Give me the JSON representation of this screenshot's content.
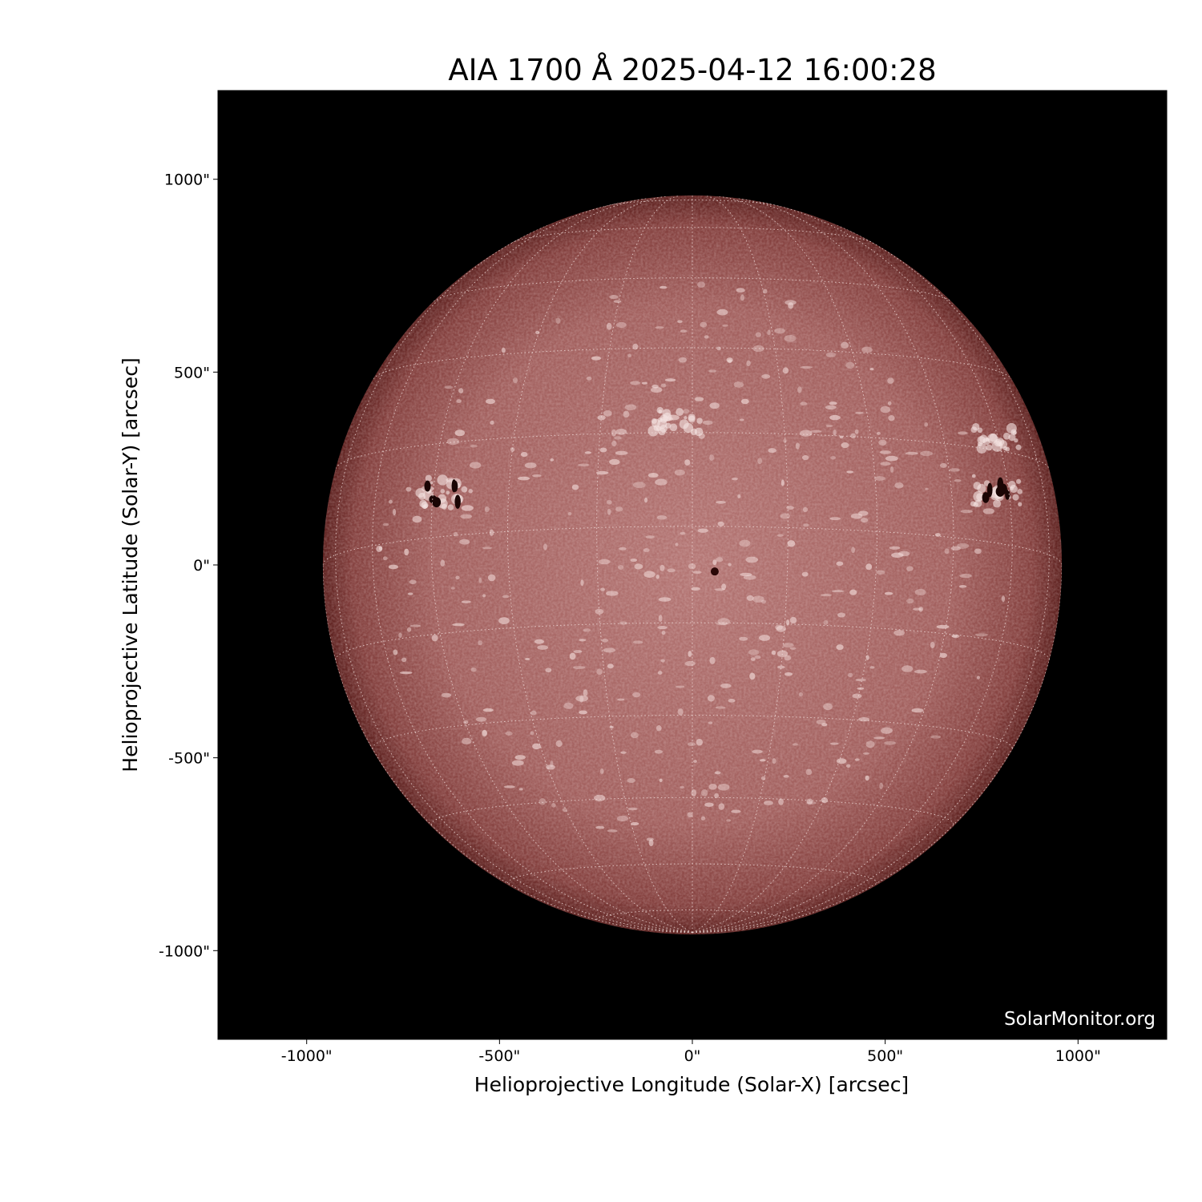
{
  "chart_data": {
    "type": "image",
    "title": "AIA 1700 Å 2025-04-12 16:00:28",
    "xlabel": "Helioprojective Longitude (Solar-X) [arcsec]",
    "ylabel": "Helioprojective Latitude (Solar-Y) [arcsec]",
    "xlim": [
      -1230,
      1230
    ],
    "ylim": [
      -1230,
      1230
    ],
    "x_ticks": [
      -1000,
      -500,
      0,
      500,
      1000
    ],
    "x_tick_labels": [
      "-1000\"",
      "-500\"",
      "0\"",
      "500\"",
      "1000\""
    ],
    "y_ticks": [
      1000,
      500,
      0,
      -500,
      -1000
    ],
    "y_tick_labels": [
      "1000\"",
      "500\"",
      "0\"",
      "-500\"",
      "-1000\""
    ],
    "solar_radius_arcsec": 958,
    "colormap": [
      "#000000",
      "#6e2a28",
      "#a86a68",
      "#f4e6e4"
    ],
    "background_color": "#000000",
    "grid": "heliographic dotted, 15° spacing",
    "features": [
      {
        "kind": "sunspot-group",
        "x": 790,
        "y": 195
      },
      {
        "kind": "plage",
        "x": 790,
        "y": 330
      },
      {
        "kind": "sunspot-group",
        "x": -650,
        "y": 185
      },
      {
        "kind": "sunspot",
        "x": 58,
        "y": -17
      },
      {
        "kind": "plage",
        "x": -40,
        "y": 370
      }
    ],
    "watermark": "SolarMonitor.org"
  }
}
